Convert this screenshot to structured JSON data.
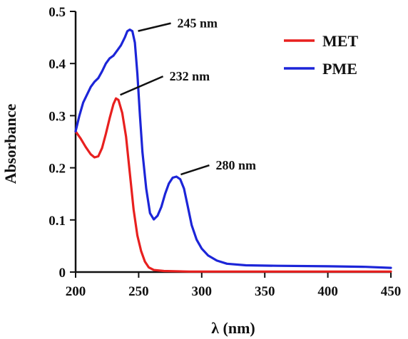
{
  "chart_data": {
    "type": "line",
    "xlabel": "λ (nm)",
    "ylabel": "Absorbance",
    "xlim": [
      200,
      450
    ],
    "ylim": [
      0,
      0.5
    ],
    "xticks": [
      200,
      250,
      300,
      350,
      400,
      450
    ],
    "xtick_labels": [
      "200",
      "250",
      "300",
      "350",
      "400",
      "450"
    ],
    "yticks": [
      0,
      0.1,
      0.2,
      0.3,
      0.4,
      0.5
    ],
    "ytick_labels": [
      "0",
      "0.1",
      "0.2",
      "0.3",
      "0.4",
      "0.5"
    ],
    "legend_position": "top-right",
    "grid": false,
    "series": [
      {
        "name": "MET",
        "color": "#e8201f",
        "points": [
          [
            200,
            0.27
          ],
          [
            204,
            0.256
          ],
          [
            208,
            0.24
          ],
          [
            212,
            0.226
          ],
          [
            215,
            0.22
          ],
          [
            218,
            0.222
          ],
          [
            221,
            0.238
          ],
          [
            224,
            0.265
          ],
          [
            227,
            0.295
          ],
          [
            230,
            0.322
          ],
          [
            232,
            0.333
          ],
          [
            234,
            0.33
          ],
          [
            237,
            0.305
          ],
          [
            240,
            0.26
          ],
          [
            243,
            0.19
          ],
          [
            246,
            0.12
          ],
          [
            249,
            0.07
          ],
          [
            252,
            0.04
          ],
          [
            255,
            0.02
          ],
          [
            258,
            0.009
          ],
          [
            262,
            0.004
          ],
          [
            270,
            0.002
          ],
          [
            290,
            0.001
          ],
          [
            330,
            0.001
          ],
          [
            400,
            0.001
          ],
          [
            450,
            0.001
          ]
        ]
      },
      {
        "name": "PME",
        "color": "#1c25d8",
        "points": [
          [
            200,
            0.27
          ],
          [
            203,
            0.3
          ],
          [
            206,
            0.325
          ],
          [
            209,
            0.34
          ],
          [
            212,
            0.355
          ],
          [
            215,
            0.365
          ],
          [
            218,
            0.372
          ],
          [
            221,
            0.385
          ],
          [
            224,
            0.4
          ],
          [
            227,
            0.41
          ],
          [
            230,
            0.415
          ],
          [
            233,
            0.425
          ],
          [
            236,
            0.435
          ],
          [
            239,
            0.45
          ],
          [
            241,
            0.462
          ],
          [
            243,
            0.465
          ],
          [
            245,
            0.462
          ],
          [
            247,
            0.44
          ],
          [
            249,
            0.38
          ],
          [
            251,
            0.3
          ],
          [
            253,
            0.23
          ],
          [
            256,
            0.16
          ],
          [
            259,
            0.113
          ],
          [
            262,
            0.101
          ],
          [
            265,
            0.108
          ],
          [
            268,
            0.125
          ],
          [
            271,
            0.15
          ],
          [
            274,
            0.17
          ],
          [
            277,
            0.181
          ],
          [
            280,
            0.183
          ],
          [
            283,
            0.178
          ],
          [
            286,
            0.16
          ],
          [
            289,
            0.125
          ],
          [
            292,
            0.09
          ],
          [
            296,
            0.062
          ],
          [
            300,
            0.045
          ],
          [
            305,
            0.032
          ],
          [
            312,
            0.022
          ],
          [
            320,
            0.016
          ],
          [
            335,
            0.013
          ],
          [
            360,
            0.012
          ],
          [
            400,
            0.011
          ],
          [
            430,
            0.01
          ],
          [
            450,
            0.008
          ]
        ]
      }
    ],
    "annotations": [
      {
        "text": "245 nm",
        "x": 245,
        "y": 0.465
      },
      {
        "text": "232 nm",
        "x": 232,
        "y": 0.333
      },
      {
        "text": "280 nm",
        "x": 280,
        "y": 0.183
      }
    ]
  }
}
